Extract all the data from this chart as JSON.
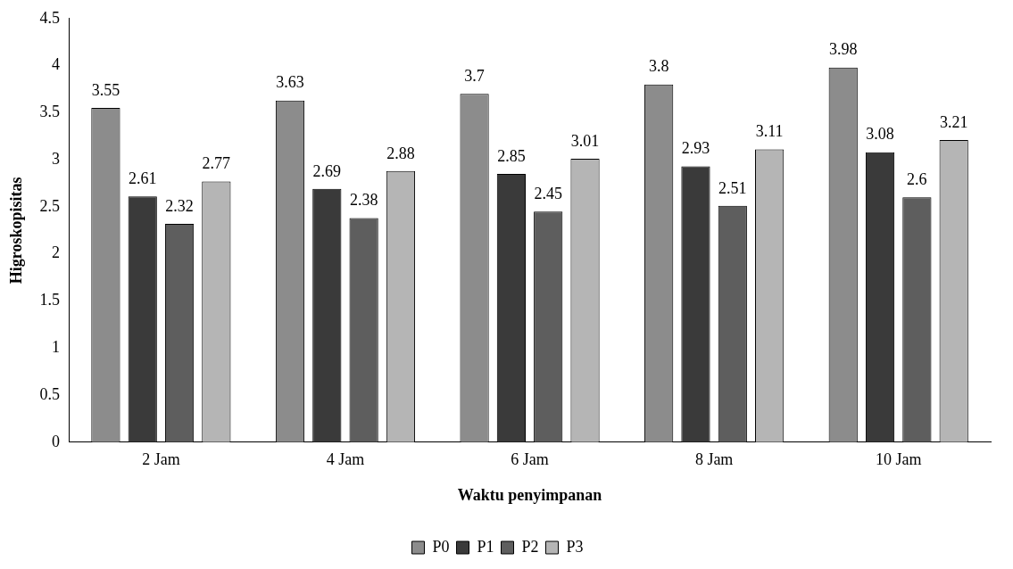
{
  "chart_data": {
    "type": "bar",
    "xlabel": "Waktu penyimpanan",
    "ylabel": "Higroskopisitas",
    "categories": [
      "2 Jam",
      "4 Jam",
      "6 Jam",
      "8 Jam",
      "10 Jam"
    ],
    "series": [
      {
        "name": "P0",
        "color": "#8c8c8c",
        "values": [
          3.55,
          3.63,
          3.7,
          3.8,
          3.98
        ]
      },
      {
        "name": "P1",
        "color": "#3a3a3a",
        "values": [
          2.61,
          2.69,
          2.85,
          2.93,
          3.08
        ]
      },
      {
        "name": "P2",
        "color": "#5e5e5e",
        "values": [
          2.32,
          2.38,
          2.45,
          2.51,
          2.6
        ]
      },
      {
        "name": "P3",
        "color": "#b5b5b5",
        "values": [
          2.77,
          2.88,
          3.01,
          3.11,
          3.21
        ]
      }
    ],
    "ylim": [
      0,
      4.5
    ],
    "yticks": [
      0,
      0.5,
      1,
      1.5,
      2,
      2.5,
      3,
      3.5,
      4,
      4.5
    ],
    "grid": false,
    "legend": "bottom",
    "data_labels": true
  }
}
